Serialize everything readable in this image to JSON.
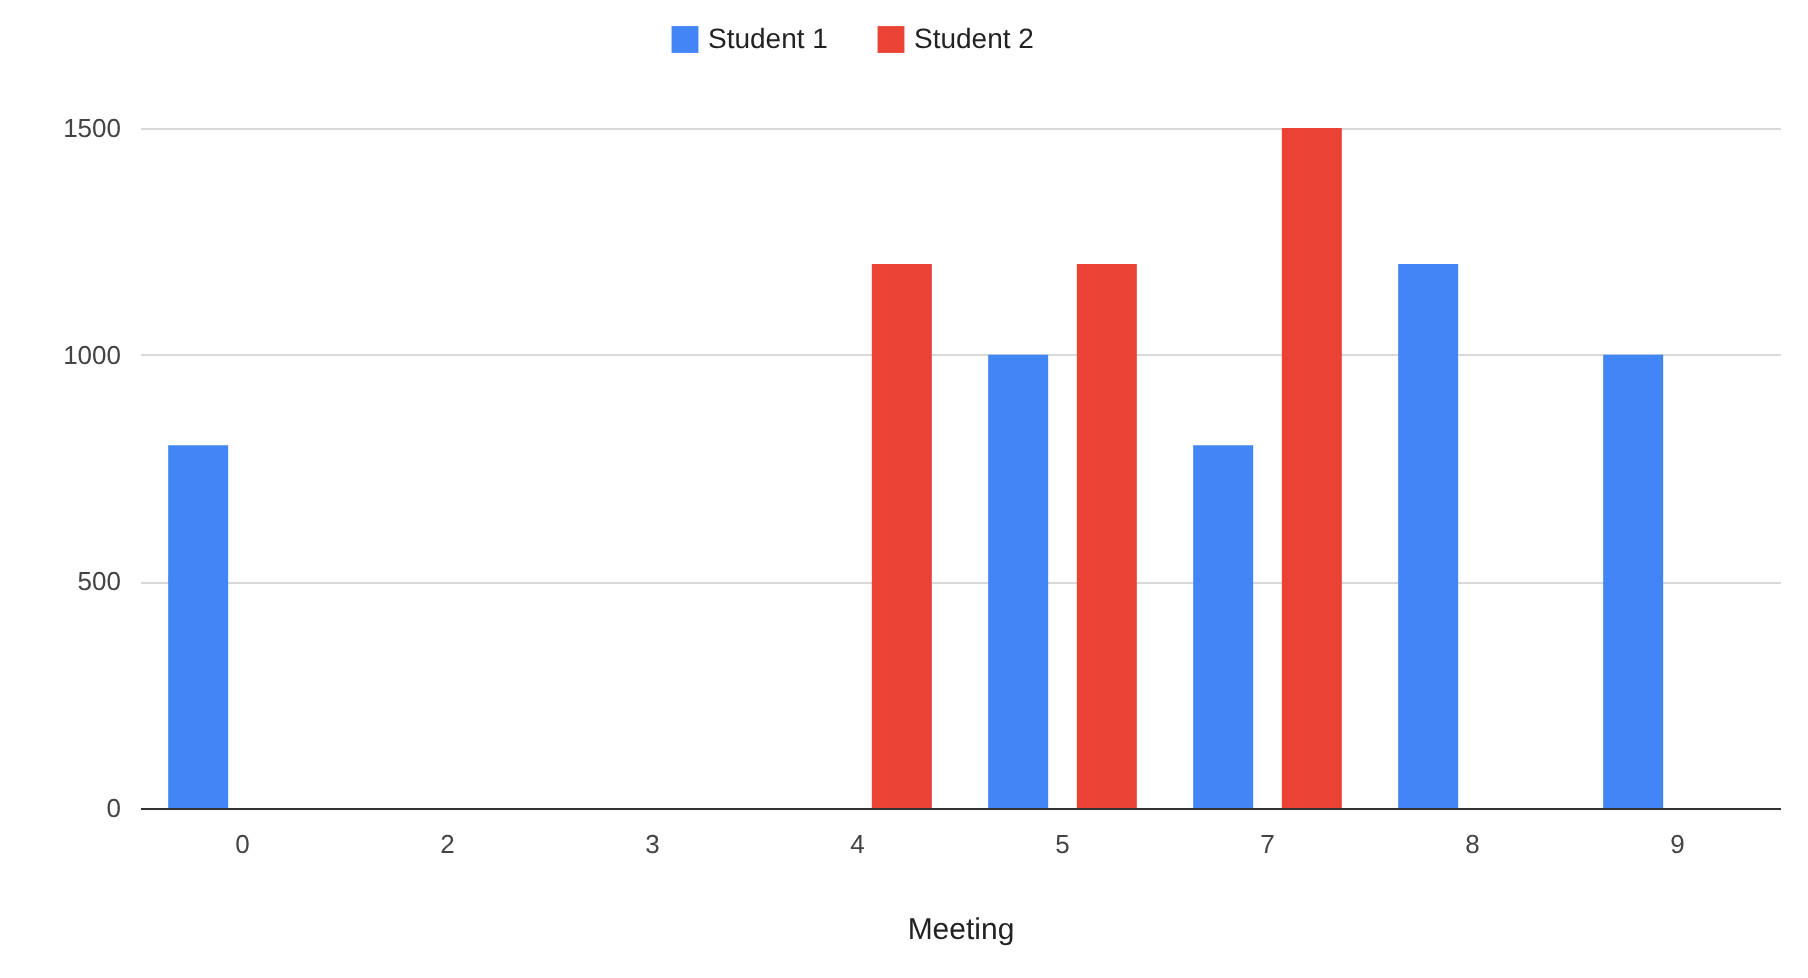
{
  "chart_data": {
    "type": "bar",
    "xlabel": "Meeting",
    "categories": [
      "0",
      "2",
      "3",
      "4",
      "5",
      "7",
      "8",
      "9"
    ],
    "series": [
      {
        "name": "Student 1",
        "color": "#4285f4",
        "values": [
          800,
          null,
          null,
          null,
          1000,
          800,
          1200,
          1000
        ]
      },
      {
        "name": "Student 2",
        "color": "#ea4335",
        "values": [
          null,
          null,
          null,
          1200,
          1200,
          1500,
          null,
          null
        ]
      }
    ],
    "ylim": [
      0,
      1500
    ],
    "yticks": [
      0,
      500,
      1000,
      1500
    ],
    "grid": "y",
    "legend": "top"
  }
}
